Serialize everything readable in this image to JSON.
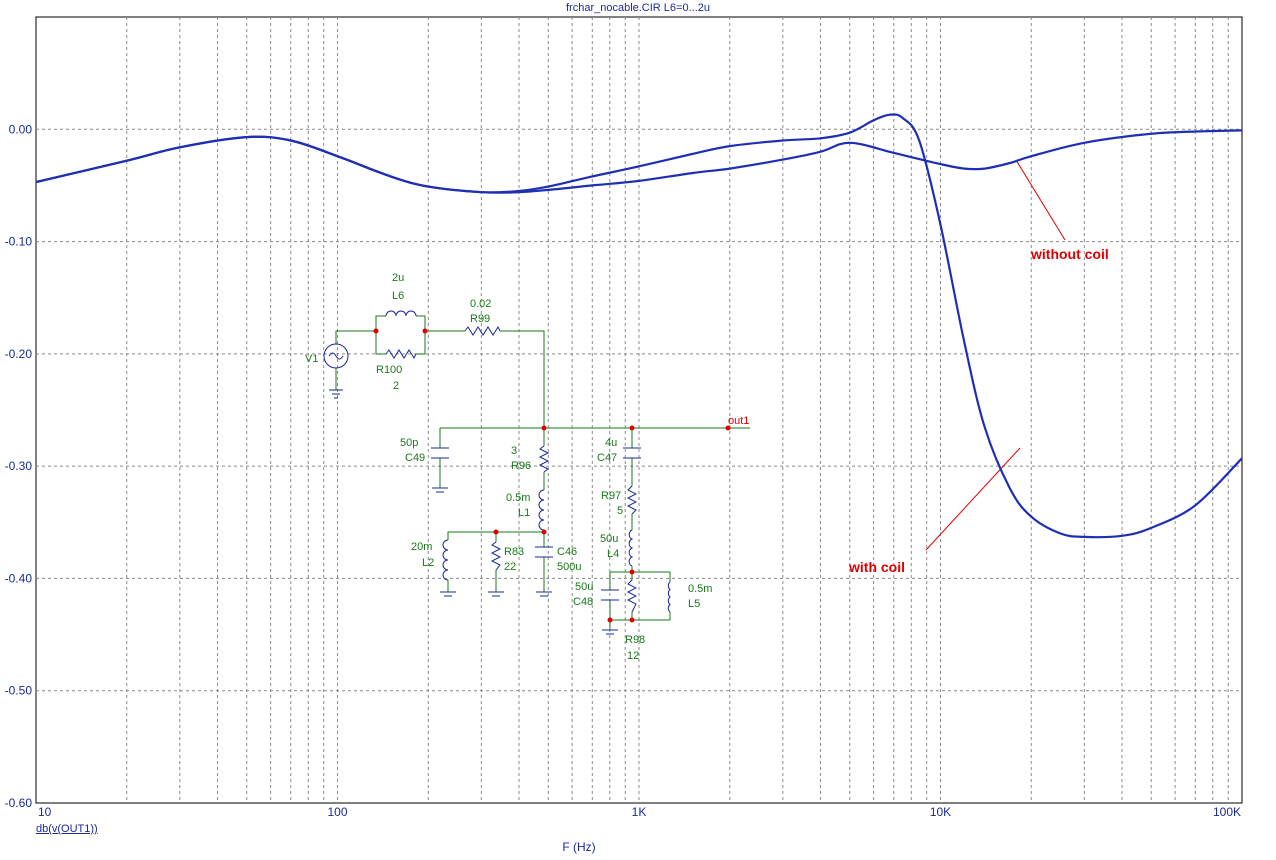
{
  "chart_data": {
    "type": "line",
    "title": "frchar_nocable.CIR L6=0...2u",
    "xlabel": "F (Hz)",
    "ylabel": "db(v(OUT1))",
    "xscale": "log",
    "xlim": [
      10,
      100000
    ],
    "ylim": [
      -0.6,
      0.1
    ],
    "grid": true,
    "x_tick_labels": [
      "10",
      "100",
      "1K",
      "10K",
      "100K"
    ],
    "y_tick_labels": [
      "0.00",
      "-0.10",
      "-0.20",
      "-0.30",
      "-0.40",
      "-0.50",
      "-0.60"
    ],
    "y_tick_values": [
      0,
      -0.1,
      -0.2,
      -0.3,
      -0.4,
      -0.5,
      -0.6
    ],
    "series": [
      {
        "name": "without coil",
        "x": [
          10,
          20,
          30,
          50,
          70,
          100,
          150,
          200,
          300,
          400,
          500,
          700,
          1000,
          1500,
          2000,
          3000,
          4000,
          5000,
          7000,
          10000,
          12000,
          14000,
          17000,
          20000,
          30000,
          50000,
          70000,
          100000
        ],
        "y": [
          -0.047,
          -0.028,
          -0.016,
          -0.007,
          -0.01,
          -0.024,
          -0.042,
          -0.051,
          -0.056,
          -0.056,
          -0.054,
          -0.05,
          -0.046,
          -0.039,
          -0.035,
          -0.027,
          -0.02,
          -0.012,
          -0.021,
          -0.031,
          -0.035,
          -0.035,
          -0.03,
          -0.024,
          -0.012,
          -0.004,
          -0.002,
          -0.001
        ]
      },
      {
        "name": "with coil",
        "x": [
          10,
          20,
          30,
          50,
          70,
          100,
          150,
          200,
          300,
          400,
          500,
          700,
          1000,
          1500,
          2000,
          3000,
          4000,
          5000,
          6000,
          6800,
          7500,
          8500,
          10000,
          12000,
          14000,
          17000,
          20000,
          25000,
          30000,
          40000,
          50000,
          70000,
          100000
        ],
        "y": [
          -0.047,
          -0.028,
          -0.016,
          -0.007,
          -0.01,
          -0.024,
          -0.042,
          -0.051,
          -0.056,
          -0.055,
          -0.051,
          -0.042,
          -0.033,
          -0.022,
          -0.015,
          -0.01,
          -0.008,
          -0.003,
          0.008,
          0.013,
          0.01,
          -0.01,
          -0.085,
          -0.19,
          -0.265,
          -0.32,
          -0.345,
          -0.36,
          -0.363,
          -0.362,
          -0.355,
          -0.335,
          -0.293
        ]
      }
    ],
    "annotations": [
      {
        "text": "without coil",
        "color": "#e00000"
      },
      {
        "text": "with coil",
        "color": "#e00000"
      }
    ],
    "line_color": "#1f2fb5",
    "grid_color": "#8a8a8a"
  },
  "schematic": {
    "labels": {
      "v1": "V1",
      "l6_val": "2u",
      "l6_name": "L6",
      "r100_name": "R100",
      "r100_val": "2",
      "r99_val": "0.02",
      "r99_name": "R99",
      "c49_val": "50p",
      "c49_name": "C49",
      "r96_val": "3",
      "r96_name": "R96",
      "l1_val": "0.5m",
      "l1_name": "L1",
      "c47_val": "4u",
      "c47_name": "C47",
      "out": "out1",
      "r97_name": "R97",
      "r97_val": "5",
      "l4_val": "50u",
      "l4_name": "L4",
      "l2_val": "20m",
      "l2_name": "L2",
      "r83_name": "R83",
      "r83_val": "22",
      "c46_name": "C46",
      "c46_val": "500u",
      "c48_val": "50u",
      "c48_name": "C48",
      "l5_val": "0.5m",
      "l5_name": "L5",
      "r98_name": "R98",
      "r98_val": "12"
    },
    "wire_color": "#1a7a1a",
    "component_color": "#1a2a9a",
    "node_color": "#e00000",
    "text_color": "#1a7a1a"
  }
}
